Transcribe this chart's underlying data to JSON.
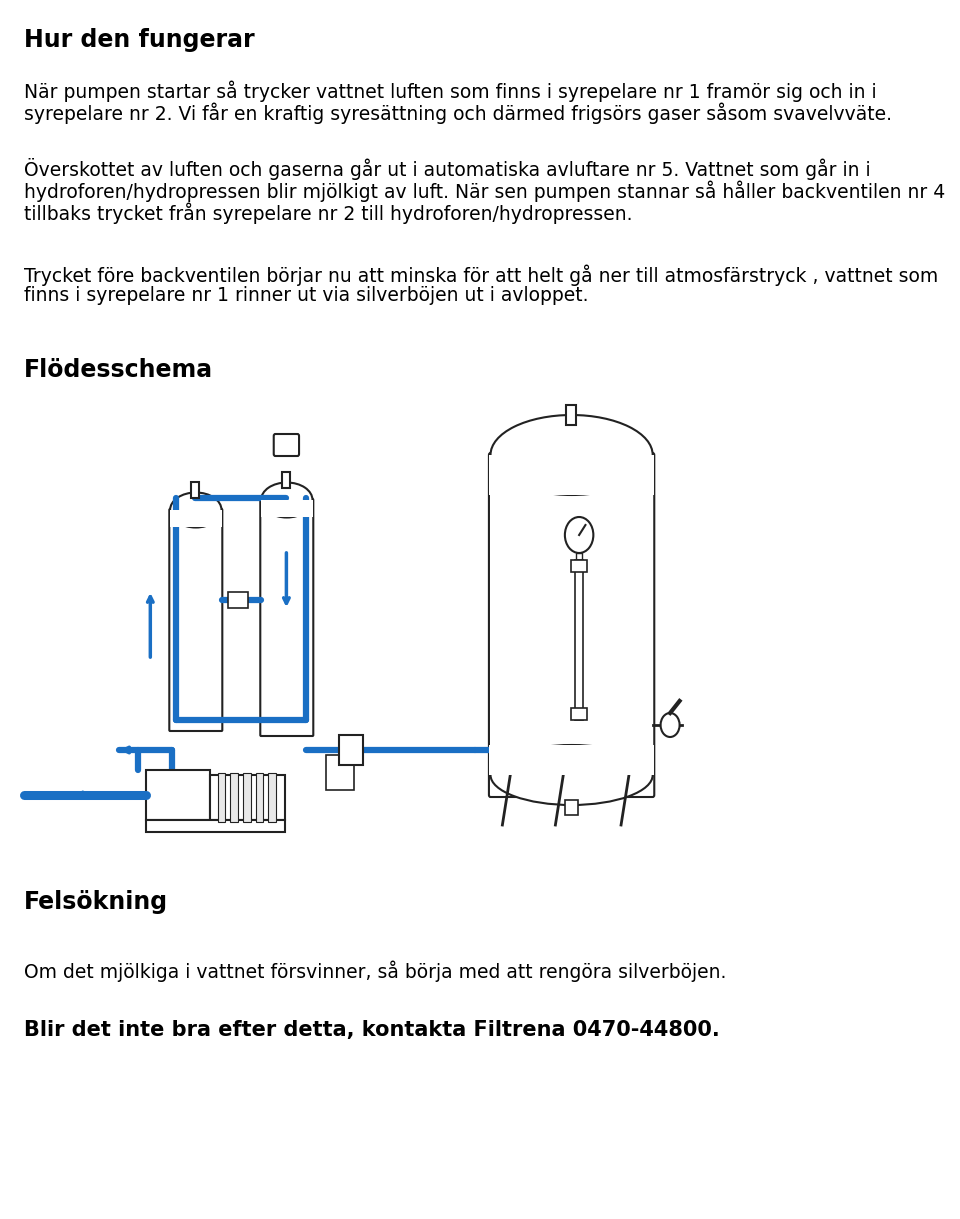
{
  "title": "Hur den fungerar",
  "para1": "När pumpen startar så trycker vattnet luften som finns i syrepelare nr 1 framör sig och in i\nsyrepelare nr 2. Vi får en kraftig syresättning och därmed frigsörs gaser såsom svavelvväte.",
  "para1_line1": "När pumpen startar så trycker vattnet luften som finns i syrepelare nr 1 framör sig och in i",
  "para1_line2": "syrepelare nr 2. Vi får en kraftig syresättning och därmed frigsörs gaser såsom svavelvväte.",
  "para2_line1": "Överskottet av luften och gaserna går ut i automatiska avluftare nr 5. Vattnet som går in i",
  "para2_line2": "hydroforen/hydropressen blir mjölkigt av luft. När sen pumpen stannar så håller backventilen nr 4",
  "para2_line3": "tillbaks trycket från syrepelare nr 2 till hydroforen/hydropressen.",
  "para3_line1": "Trycket före backventilen börjar nu att minska för att helt gå ner till atmosfärstryck , vattnet som",
  "para3_line2": "finns i syrepelare nr 1 rinner ut via silverböjen ut i avloppet.",
  "flodesschema": "Flödesschema",
  "felsoekning": "Felsökning",
  "para4": "Om det mjölkiga i vattnet försvinner, så börja med att rengöra silverböjen.",
  "para5": "Blir det inte bra efter detta, kontakta Filtrena 0470-44800.",
  "bg_color": "#ffffff",
  "text_color": "#000000",
  "blue_color": "#1a6fc4",
  "pipe_color": "#1a6fc4",
  "tank_color": "#d0d0d0",
  "dark_color": "#222222"
}
